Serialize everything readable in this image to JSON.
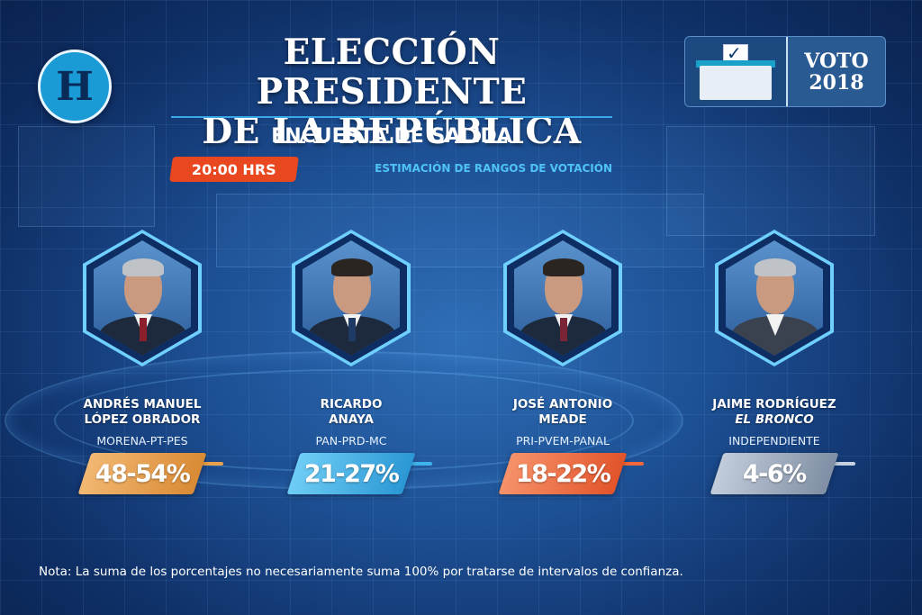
{
  "header": {
    "logo_letter": "H",
    "title_line1": "ELECCIÓN PRESIDENTE",
    "title_line2": "DE LA REPÚBLICA",
    "subtitle": "ENCUESTA DE SALIDA",
    "time": "20:00 HRS",
    "estimacion": "ESTIMACIÓN DE RANGOS DE VOTACIÓN",
    "voto_line1": "VOTO",
    "voto_line2": "2018"
  },
  "candidates": [
    {
      "name_line1": "ANDRÉS MANUEL",
      "name_line2": "LÓPEZ OBRADOR",
      "party": "MORENA-PT-PES",
      "range": "48-54%",
      "color": "#e8a04a"
    },
    {
      "name_line1": "RICARDO",
      "name_line2": "ANAYA",
      "party": "PAN-PRD-MC",
      "range": "21-27%",
      "color": "#3fb4ea"
    },
    {
      "name_line1": "JOSÉ ANTONIO",
      "name_line2": "MEADE",
      "party": "PRI-PVEM-PANAL",
      "range": "18-22%",
      "color": "#f0673a"
    },
    {
      "name_line1": "JAIME RODRÍGUEZ",
      "name_line2": "EL BRONCO",
      "party": "INDEPENDIENTE",
      "range": "4-6%",
      "color": "#9aa9be"
    }
  ],
  "note": "Nota: La suma de los porcentajes no necesariamente suma 100% por tratarse de intervalos de confianza."
}
